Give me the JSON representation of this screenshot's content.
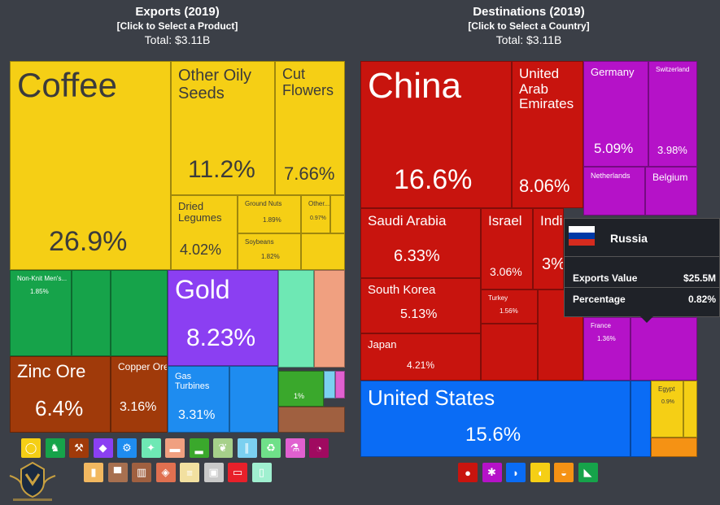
{
  "exports": {
    "title": "Exports (2019)",
    "subtitle": "[Click to Select a Product]",
    "total": "Total: $3.11B"
  },
  "destinations": {
    "title": "Destinations (2019)",
    "subtitle": "[Click to Select a Country]",
    "total": "Total: $3.11B"
  },
  "tooltip": {
    "country": "Russia",
    "rows": [
      {
        "label": "Exports Value",
        "value": "$25.5M"
      },
      {
        "label": "Percentage",
        "value": "0.82%"
      }
    ]
  },
  "chart_data": [
    {
      "type": "treemap",
      "title": "Exports (2019)",
      "items": [
        {
          "name": "Coffee",
          "percent": 26.9,
          "label": "26.9%",
          "color": "#f5cf15"
        },
        {
          "name": "Other Oily Seeds",
          "percent": 11.2,
          "label": "11.2%",
          "color": "#f5cf15"
        },
        {
          "name": "Cut Flowers",
          "percent": 7.66,
          "label": "7.66%",
          "color": "#f5cf15"
        },
        {
          "name": "Dried Legumes",
          "percent": 4.02,
          "label": "4.02%",
          "color": "#f5cf15"
        },
        {
          "name": "Ground Nuts",
          "percent": 1.89,
          "label": "1.89%",
          "color": "#f5cf15"
        },
        {
          "name": "Soybeans",
          "percent": 1.82,
          "label": "1.82%",
          "color": "#f5cf15"
        },
        {
          "name": "Other...",
          "percent": 0.97,
          "label": "0.97%",
          "color": "#f5cf15"
        },
        {
          "name": "Non-Knit Men's...",
          "percent": 1.85,
          "label": "1.85%",
          "color": "#16a34a"
        },
        {
          "name": "Gold",
          "percent": 8.23,
          "label": "8.23%",
          "color": "#8b3ff2"
        },
        {
          "name": "Zinc Ore",
          "percent": 6.4,
          "label": "6.4%",
          "color": "#a03a0a"
        },
        {
          "name": "Copper Ore",
          "percent": 3.16,
          "label": "3.16%",
          "color": "#a03a0a"
        },
        {
          "name": "Gas Turbines",
          "percent": 3.31,
          "label": "3.31%",
          "color": "#1e8cf0"
        },
        {
          "name": "",
          "percent": 1,
          "label": "1%",
          "color": "#3aa82c"
        }
      ]
    },
    {
      "type": "treemap",
      "title": "Destinations (2019)",
      "items": [
        {
          "name": "China",
          "percent": 16.6,
          "label": "16.6%",
          "color": "#c8140e"
        },
        {
          "name": "United Arab Emirates",
          "percent": 8.06,
          "label": "8.06%",
          "color": "#c8140e"
        },
        {
          "name": "Saudi Arabia",
          "percent": 6.33,
          "label": "6.33%",
          "color": "#c8140e"
        },
        {
          "name": "Israel",
          "percent": 3.06,
          "label": "3.06%",
          "color": "#c8140e"
        },
        {
          "name": "India",
          "percent": 3,
          "label": "3%",
          "color": "#c8140e"
        },
        {
          "name": "South Korea",
          "percent": 5.13,
          "label": "5.13%",
          "color": "#c8140e"
        },
        {
          "name": "Turkey",
          "percent": 1.56,
          "label": "1.56%",
          "color": "#c8140e"
        },
        {
          "name": "Japan",
          "percent": 4.21,
          "label": "4.21%",
          "color": "#c8140e"
        },
        {
          "name": "Germany",
          "percent": 5.09,
          "label": "5.09%",
          "color": "#b512c8"
        },
        {
          "name": "Switzerland",
          "percent": 3.98,
          "label": "3.98%",
          "color": "#b512c8"
        },
        {
          "name": "Netherlands",
          "percent": null,
          "label": "",
          "color": "#b512c8"
        },
        {
          "name": "Belgium",
          "percent": null,
          "label": "",
          "color": "#b512c8"
        },
        {
          "name": "France",
          "percent": 1.36,
          "label": "1.36%",
          "color": "#b512c8"
        },
        {
          "name": "United States",
          "percent": 15.6,
          "label": "15.6%",
          "color": "#0a6cf5"
        },
        {
          "name": "Egypt",
          "percent": 0.9,
          "label": "0.9%",
          "color": "#f5cf15"
        }
      ]
    }
  ],
  "legend_product_icons": [
    {
      "icon": "vegetable-icon",
      "color": "#f5cf15"
    },
    {
      "icon": "shirt-icon",
      "color": "#16a34a"
    },
    {
      "icon": "pickaxe-icon",
      "color": "#a03a0a"
    },
    {
      "icon": "diamond-icon",
      "color": "#8b3ff2"
    },
    {
      "icon": "gear-icon",
      "color": "#1e8cf0"
    },
    {
      "icon": "hide-icon",
      "color": "#6ee8b4"
    },
    {
      "icon": "animal-icon",
      "color": "#f0a080"
    },
    {
      "icon": "shoe-icon",
      "color": "#3aa82c"
    },
    {
      "icon": "wheat-icon",
      "color": "#a6d08a"
    },
    {
      "icon": "road-icon",
      "color": "#7bd0f0"
    },
    {
      "icon": "recycle-icon",
      "color": "#6fe089"
    },
    {
      "icon": "flask-icon",
      "color": "#e060d0"
    },
    {
      "icon": "gauge-icon",
      "color": "#a00a60"
    },
    {
      "icon": "bottle-icon",
      "color": "#f2b860"
    },
    {
      "icon": "anvil-icon",
      "color": "#a77050"
    },
    {
      "icon": "easel-icon",
      "color": "#a06040"
    },
    {
      "icon": "rock-icon",
      "color": "#e07050"
    },
    {
      "icon": "paper-icon",
      "color": "#f2e0a0"
    },
    {
      "icon": "box-icon",
      "color": "#c9c9c9"
    },
    {
      "icon": "train-icon",
      "color": "#e8202a"
    },
    {
      "icon": "plastic-icon",
      "color": "#a0f0d0"
    }
  ],
  "legend_continent_icons": [
    {
      "icon": "asia-icon",
      "color": "#c8140e"
    },
    {
      "icon": "europe-icon",
      "color": "#b512c8"
    },
    {
      "icon": "north-america-icon",
      "color": "#0a6cf5"
    },
    {
      "icon": "africa-icon",
      "color": "#f5cf15"
    },
    {
      "icon": "oceania-icon",
      "color": "#f59214"
    },
    {
      "icon": "south-america-icon",
      "color": "#16a34a"
    }
  ]
}
